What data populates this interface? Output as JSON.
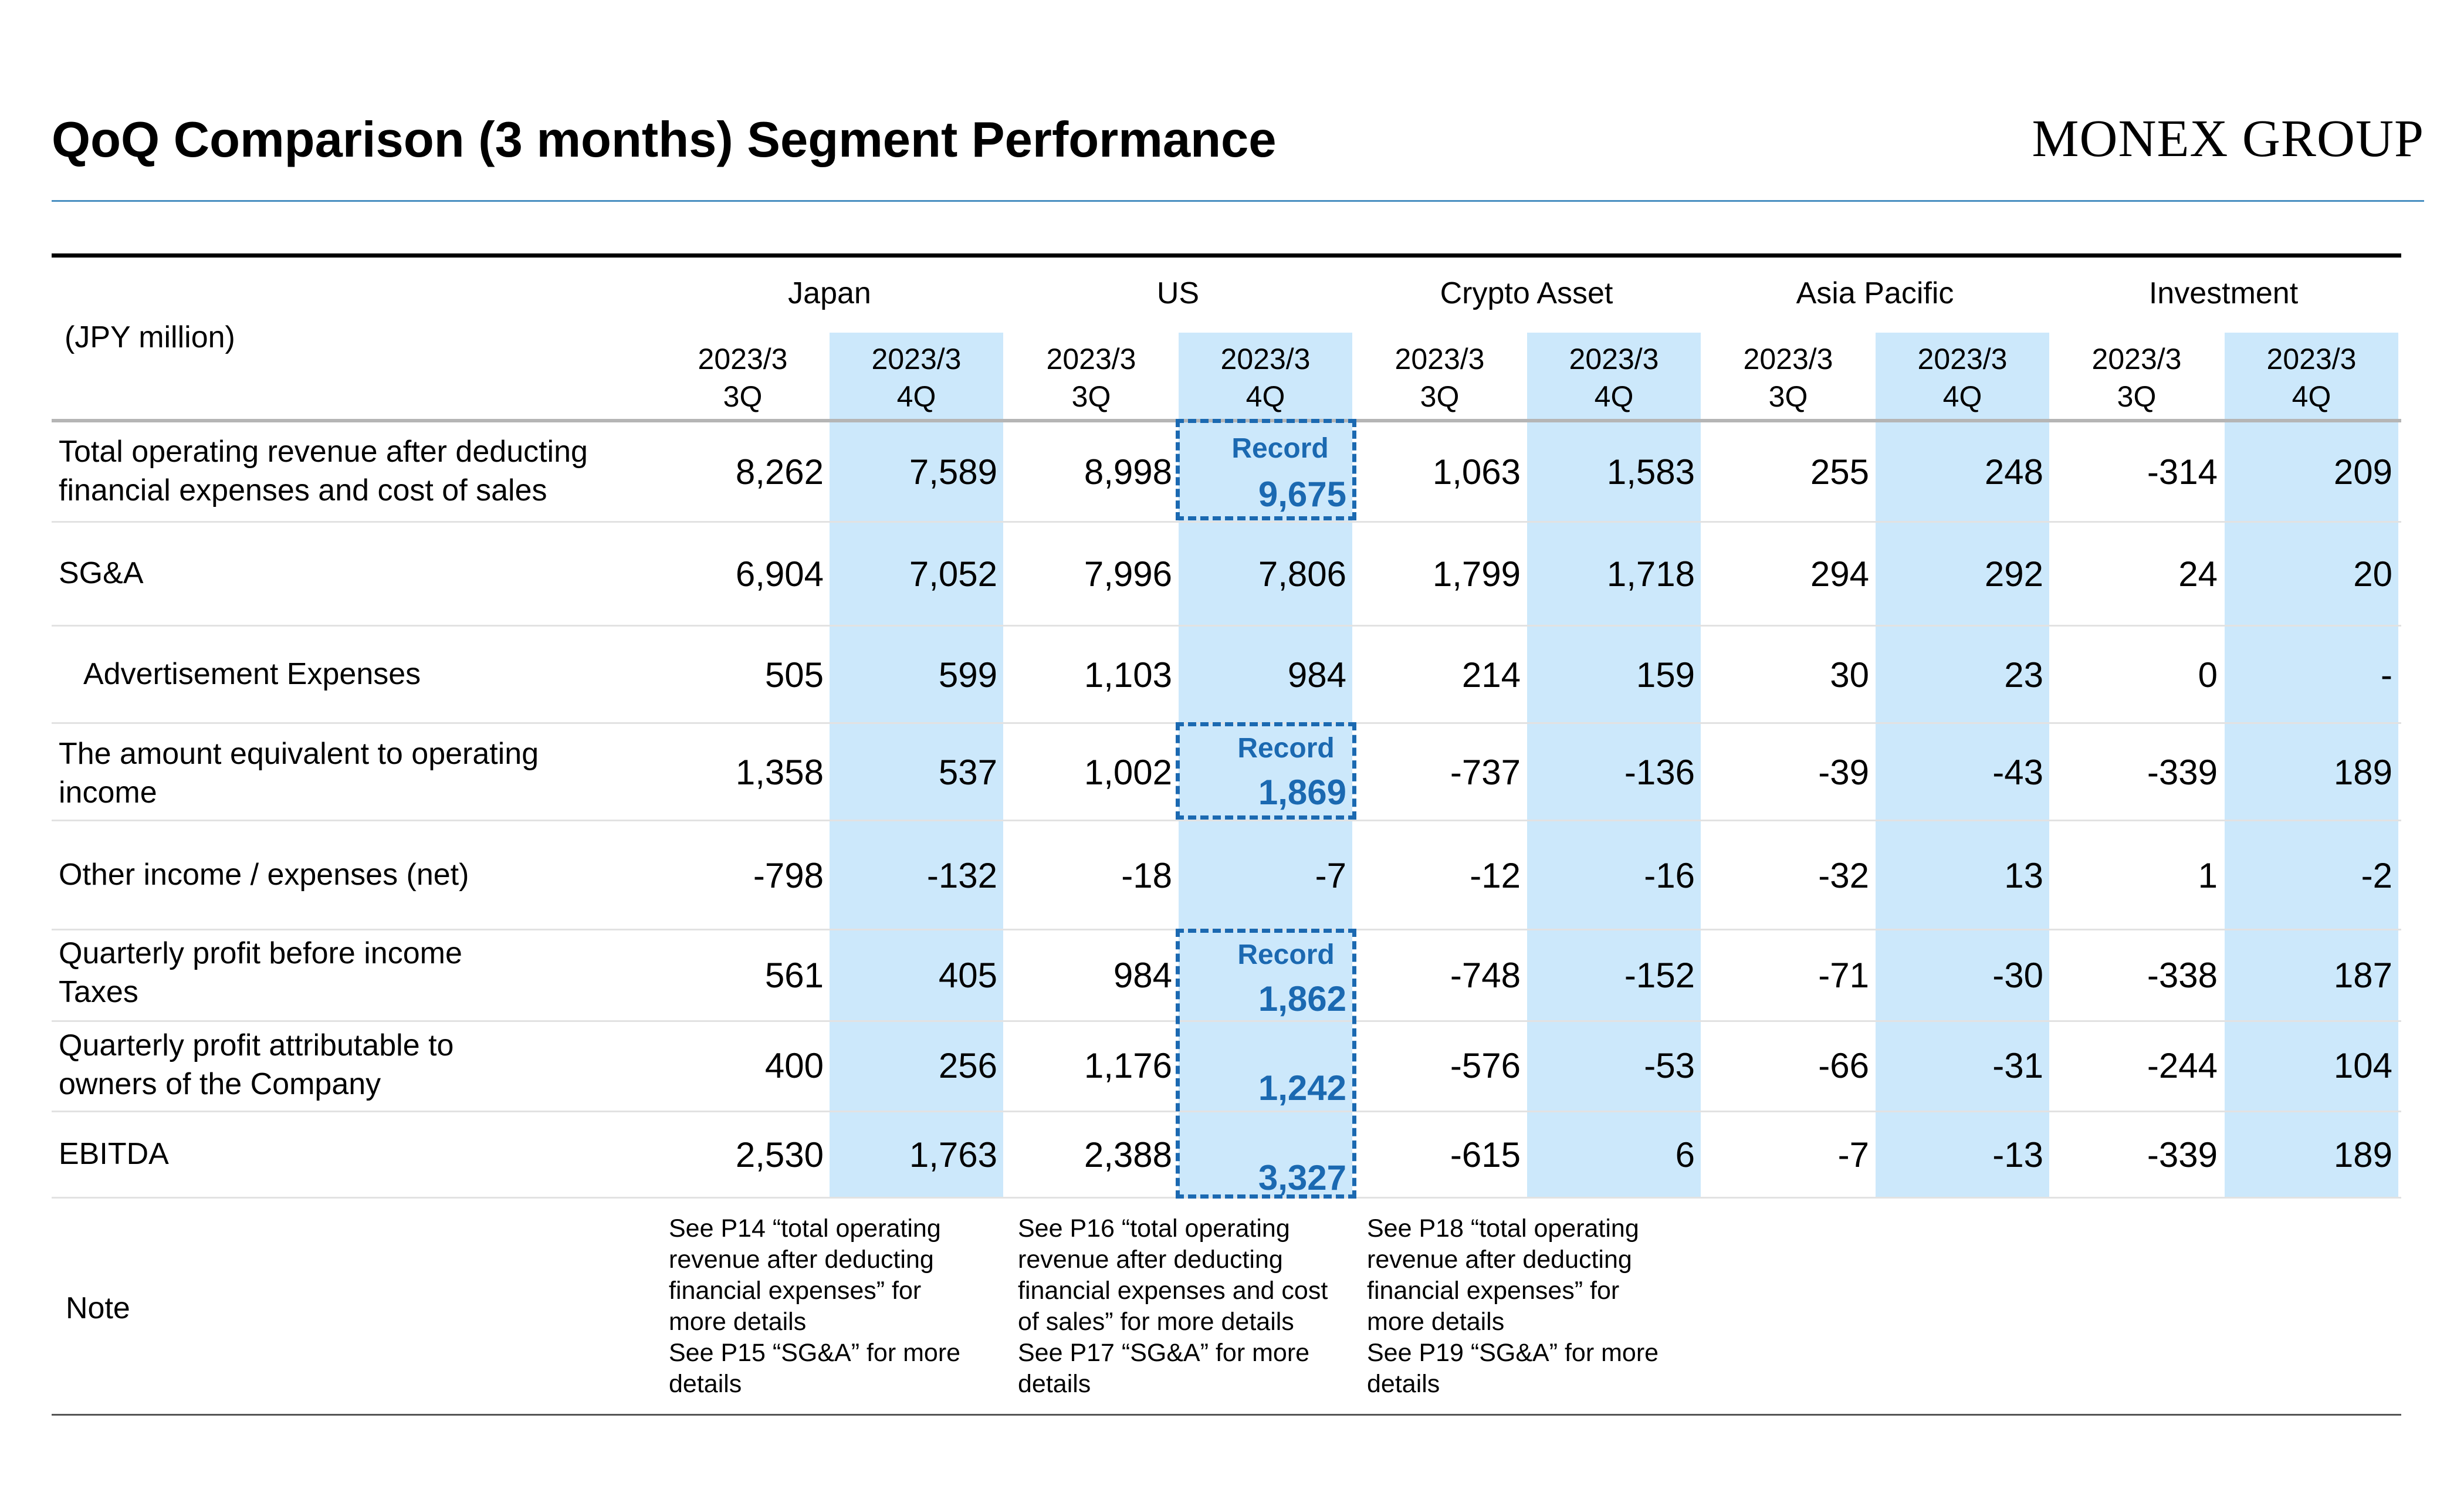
{
  "title": "QoQ Comparison (3 months) Segment Performance",
  "logo": "MONEX GROUP",
  "unit_label": "(JPY million)",
  "segments": [
    "Japan",
    "US",
    "Crypto Asset",
    "Asia Pacific",
    "Investment"
  ],
  "period_headers": [
    {
      "year": "2023/3",
      "quarter": "3Q"
    },
    {
      "year": "2023/3",
      "quarter": "4Q"
    }
  ],
  "highlight_color": "#cce8fb",
  "record_color": "#1b69b1",
  "record_label": "Record",
  "rows": [
    {
      "label_lines": [
        "Total operating revenue after deducting",
        "financial expenses and cost of sales"
      ],
      "values": [
        "8,262",
        "7,589",
        "8,998",
        "9,675",
        "1,063",
        "1,583",
        "255",
        "248",
        "-314",
        "209"
      ]
    },
    {
      "label_lines": [
        "SG&A"
      ],
      "values": [
        "6,904",
        "7,052",
        "7,996",
        "7,806",
        "1,799",
        "1,718",
        "294",
        "292",
        "24",
        "20"
      ]
    },
    {
      "label_lines": [
        "Advertisement Expenses"
      ],
      "values": [
        "505",
        "599",
        "1,103",
        "984",
        "214",
        "159",
        "30",
        "23",
        "0",
        "-"
      ]
    },
    {
      "label_lines": [
        "The amount equivalent to operating",
        "income"
      ],
      "values": [
        "1,358",
        "537",
        "1,002",
        "1,869",
        "-737",
        "-136",
        "-39",
        "-43",
        "-339",
        "189"
      ]
    },
    {
      "label_lines": [
        "Other income / expenses (net)"
      ],
      "values": [
        "-798",
        "-132",
        "-18",
        "-7",
        "-12",
        "-16",
        "-32",
        "13",
        "1",
        "-2"
      ]
    },
    {
      "label_lines": [
        "Quarterly profit before income",
        "Taxes"
      ],
      "values": [
        "561",
        "405",
        "984",
        "1,862",
        "-748",
        "-152",
        "-71",
        "-30",
        "-338",
        "187"
      ]
    },
    {
      "label_lines": [
        "Quarterly profit attributable to",
        "owners of the Company"
      ],
      "values": [
        "400",
        "256",
        "1,176",
        "1,242",
        "-576",
        "-53",
        "-66",
        "-31",
        "-244",
        "104"
      ]
    },
    {
      "label_lines": [
        "EBITDA"
      ],
      "values": [
        "2,530",
        "1,763",
        "2,388",
        "3,327",
        "-615",
        "6",
        "-7",
        "-13",
        "-339",
        "189"
      ]
    }
  ],
  "note_label": "Note",
  "notes": [
    "See P14 “total operating\nrevenue after deducting\nfinancial expenses” for\nmore details\nSee P15 “SG&A” for more\ndetails",
    "See P16 “total operating\nrevenue after deducting\nfinancial expenses and cost\nof sales” for more details\nSee P17 “SG&A” for more\ndetails",
    "See P18 “total operating\nrevenue after deducting\nfinancial expenses” for\nmore details\nSee P19 “SG&A” for more\ndetails"
  ]
}
